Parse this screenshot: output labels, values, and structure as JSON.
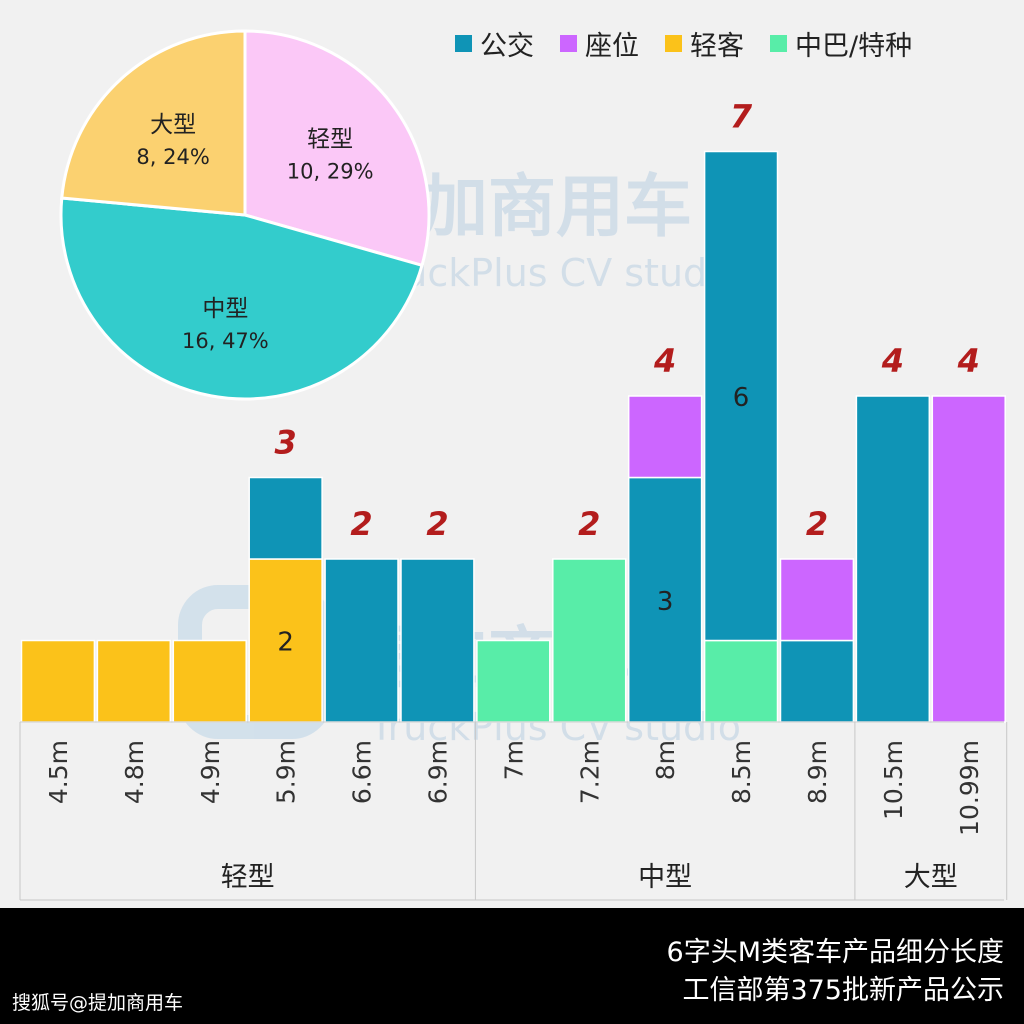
{
  "legend": [
    {
      "label": "公交",
      "color": "#0f94b6"
    },
    {
      "label": "座位",
      "color": "#cc66ff"
    },
    {
      "label": "轻客",
      "color": "#fbc21a"
    },
    {
      "label": "中巴/特种",
      "color": "#58eda8"
    }
  ],
  "watermark": {
    "cn": "提加商用车",
    "en": "TruckPlus CV studio"
  },
  "footer": {
    "title_line1": "6字头M类客车产品细分长度",
    "title_line2": "工信部第375批新产品公示",
    "credit": "搜狐号@提加商用车"
  },
  "chart_data": [
    {
      "type": "bar",
      "stacked": true,
      "categories": [
        "4.5m",
        "4.8m",
        "4.9m",
        "5.9m",
        "6.6m",
        "6.9m",
        "7m",
        "7.2m",
        "8m",
        "8.5m",
        "8.9m",
        "10.5m",
        "10.99m"
      ],
      "groups": [
        {
          "label": "轻型",
          "categories": [
            "4.5m",
            "4.8m",
            "4.9m",
            "5.9m",
            "6.6m",
            "6.9m"
          ]
        },
        {
          "label": "中型",
          "categories": [
            "7m",
            "7.2m",
            "8m",
            "8.5m",
            "8.9m"
          ]
        },
        {
          "label": "大型",
          "categories": [
            "10.5m",
            "10.99m"
          ]
        }
      ],
      "series": [
        {
          "name": "公交",
          "color": "#0f94b6",
          "values": [
            0,
            0,
            0,
            1,
            2,
            2,
            0,
            0,
            3,
            6,
            1,
            4,
            0
          ]
        },
        {
          "name": "座位",
          "color": "#cc66ff",
          "values": [
            0,
            0,
            0,
            0,
            0,
            0,
            0,
            0,
            1,
            0,
            1,
            0,
            4
          ]
        },
        {
          "name": "轻客",
          "color": "#fbc21a",
          "values": [
            1,
            1,
            1,
            2,
            0,
            0,
            0,
            0,
            0,
            0,
            0,
            0,
            0
          ]
        },
        {
          "name": "中巴/特种",
          "color": "#58eda8",
          "values": [
            0,
            0,
            0,
            0,
            0,
            0,
            1,
            2,
            0,
            1,
            0,
            0,
            0
          ]
        }
      ],
      "segment_labels": [
        {
          "category": "5.9m",
          "series": "轻客",
          "text": "2"
        },
        {
          "category": "8m",
          "series": "公交",
          "text": "3"
        },
        {
          "category": "8.5m",
          "series": "公交",
          "text": "6"
        }
      ],
      "totals": [
        "",
        "",
        "",
        "3",
        "2",
        "2",
        "",
        "2",
        "4",
        "7",
        "2",
        "4",
        "4"
      ],
      "ylim": [
        0,
        7
      ],
      "legend_position": "top-right"
    },
    {
      "type": "pie",
      "slices": [
        {
          "label": "轻型",
          "value": 10,
          "text": "10, 29%",
          "color": "#fbc8f7"
        },
        {
          "label": "中型",
          "value": 16,
          "text": "16, 47%",
          "color": "#33cccc"
        },
        {
          "label": "大型",
          "value": 8,
          "text": "8, 24%",
          "color": "#fbd170"
        }
      ]
    }
  ]
}
